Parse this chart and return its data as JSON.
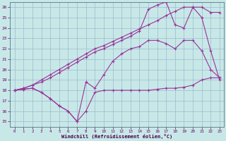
{
  "xlabel": "Windchill (Refroidissement éolien,°C)",
  "bg_color": "#c8e8e8",
  "grid_color": "#99bbcc",
  "line_color": "#993399",
  "xlim": [
    -0.5,
    23.5
  ],
  "ylim": [
    14.5,
    26.5
  ],
  "yticks": [
    15,
    16,
    17,
    18,
    19,
    20,
    21,
    22,
    23,
    24,
    25,
    26
  ],
  "xticks": [
    0,
    1,
    2,
    3,
    4,
    5,
    6,
    7,
    8,
    9,
    10,
    11,
    12,
    13,
    14,
    15,
    16,
    17,
    18,
    19,
    20,
    21,
    22,
    23
  ],
  "line1_x": [
    0,
    1,
    2,
    3,
    4,
    5,
    6,
    7,
    8,
    9,
    10,
    11,
    12,
    13,
    14,
    15,
    16,
    17,
    18,
    19,
    20,
    21,
    22,
    23
  ],
  "line1_y": [
    18.0,
    18.1,
    18.2,
    17.8,
    17.2,
    16.5,
    16.0,
    15.0,
    16.0,
    17.8,
    18.0,
    18.0,
    18.0,
    18.0,
    18.0,
    18.0,
    18.1,
    18.2,
    18.2,
    18.3,
    18.5,
    19.0,
    19.2,
    19.2
  ],
  "line2_x": [
    0,
    1,
    2,
    3,
    4,
    5,
    6,
    7,
    8,
    9,
    10,
    11,
    12,
    13,
    14,
    15,
    16,
    17,
    18,
    19,
    20,
    21,
    22,
    23
  ],
  "line2_y": [
    18.0,
    18.1,
    18.2,
    17.8,
    17.2,
    16.5,
    16.0,
    15.0,
    18.8,
    18.2,
    19.5,
    20.8,
    21.5,
    22.0,
    22.2,
    22.8,
    22.8,
    22.5,
    22.0,
    22.8,
    22.8,
    21.8,
    20.0,
    19.2
  ],
  "line3_x": [
    0,
    1,
    2,
    3,
    4,
    5,
    6,
    7,
    8,
    9,
    10,
    11,
    12,
    13,
    14,
    15,
    16,
    17,
    18,
    19,
    20,
    21,
    22,
    23
  ],
  "line3_y": [
    18.0,
    18.2,
    18.5,
    19.0,
    19.5,
    20.0,
    20.5,
    21.0,
    21.5,
    22.0,
    22.3,
    22.7,
    23.1,
    23.5,
    23.9,
    24.3,
    24.7,
    25.2,
    25.6,
    26.0,
    26.0,
    26.0,
    25.5,
    25.5
  ],
  "line4_x": [
    0,
    1,
    2,
    3,
    4,
    5,
    6,
    7,
    8,
    9,
    10,
    11,
    12,
    13,
    14,
    15,
    16,
    17,
    18,
    19,
    20,
    21,
    22,
    23
  ],
  "line4_y": [
    18.0,
    18.2,
    18.5,
    18.8,
    19.2,
    19.7,
    20.2,
    20.7,
    21.2,
    21.7,
    22.0,
    22.4,
    22.8,
    23.2,
    23.7,
    25.8,
    26.2,
    26.5,
    24.3,
    24.0,
    26.0,
    25.0,
    21.8,
    19.0
  ]
}
